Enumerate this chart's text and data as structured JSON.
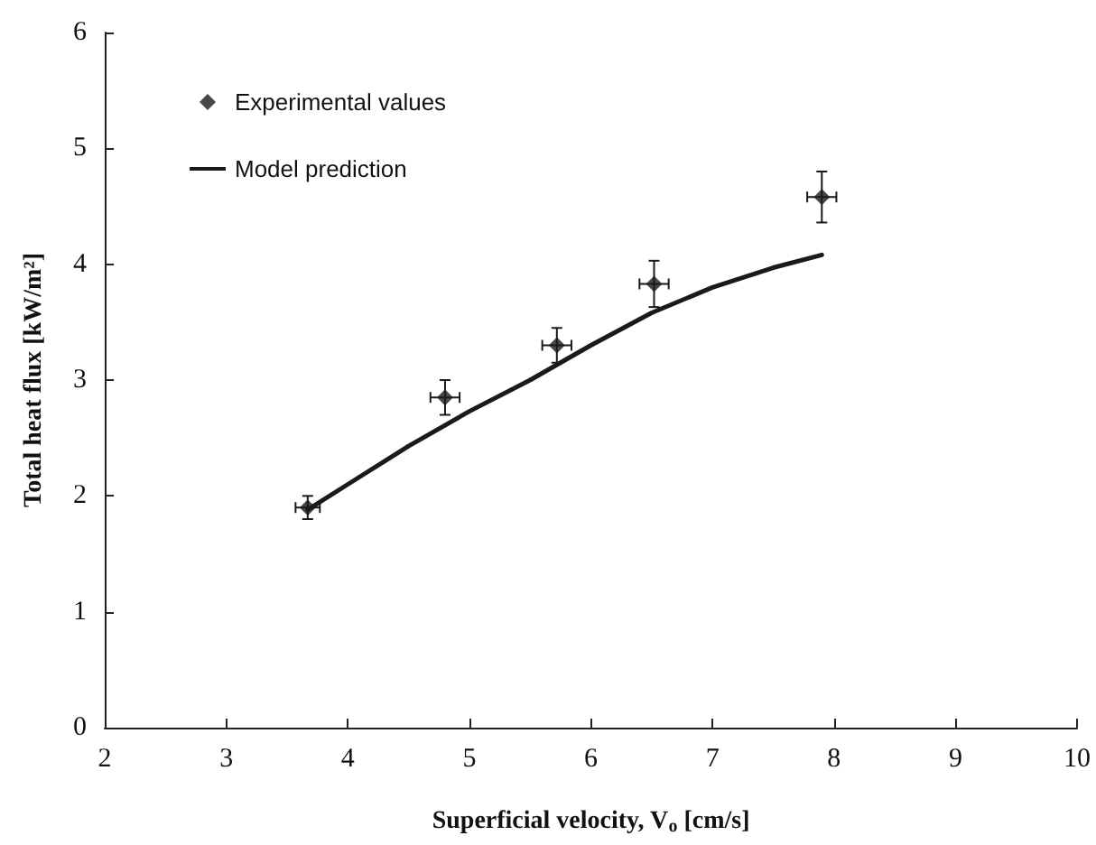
{
  "chart_data": {
    "type": "scatter",
    "xlabel": "Superficial velocity, V$_{o}$ [cm/s]",
    "ylabel": "Total heat flux [kW/m²]",
    "xlim": [
      2,
      10
    ],
    "xticks": [
      2,
      3,
      4,
      5,
      6,
      7,
      8,
      9,
      10
    ],
    "ylim": [
      0,
      6
    ],
    "yticks": [
      0,
      1,
      2,
      3,
      4,
      5,
      6
    ],
    "grid": false,
    "legend": "top left",
    "series": [
      {
        "name": "Experimental values",
        "marker": "diamond",
        "color": "#1a1a1a",
        "x": [
          3.67,
          4.8,
          5.72,
          6.52,
          7.9
        ],
        "values": [
          1.9,
          2.85,
          3.3,
          3.83,
          4.58
        ],
        "errors": [
          0.1,
          0.15,
          0.15,
          0.2,
          0.22
        ],
        "xerrors": [
          0.1,
          0.12,
          0.12,
          0.12,
          0.12
        ]
      },
      {
        "name": "Model prediction",
        "type": "line",
        "marker": "none",
        "line_style": "solid",
        "color": "#1a1a1a",
        "x": [
          3.67,
          4.0,
          4.5,
          5.0,
          5.5,
          6.0,
          6.5,
          7.0,
          7.5,
          7.9
        ],
        "values": [
          1.88,
          2.1,
          2.43,
          2.73,
          3.0,
          3.3,
          3.58,
          3.8,
          3.97,
          4.08
        ]
      }
    ]
  }
}
